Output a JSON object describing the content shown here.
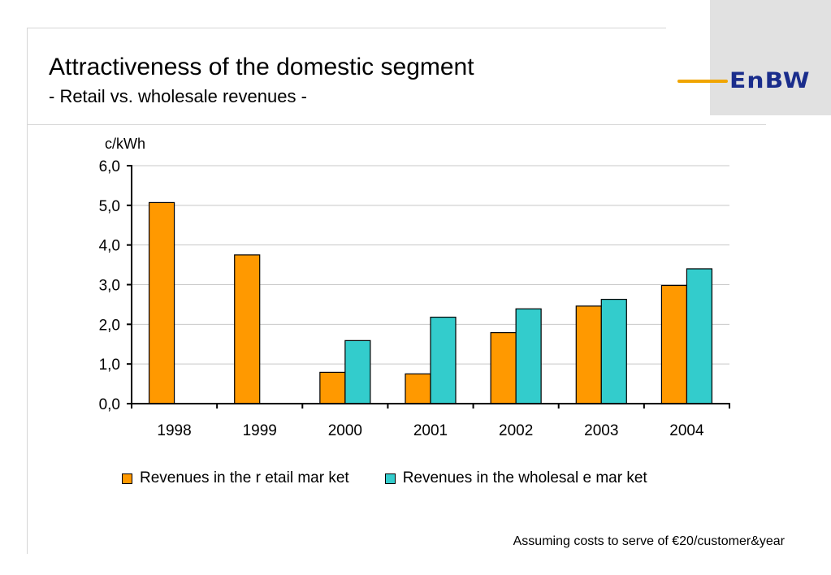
{
  "header": {
    "title": "Attractiveness of the domestic segment",
    "subtitle": "- Retail vs. wholesale revenues -",
    "logo_text": "EnBW"
  },
  "footnote": "Assuming costs to serve of €20/customer&year",
  "colors": {
    "retail": "#ff9900",
    "wholesale": "#33cccc",
    "logo_blue": "#1a2d8c",
    "logo_accent": "#f0a500"
  },
  "chart_data": {
    "type": "bar",
    "ylabel": "c/kWh",
    "ylim": [
      0,
      6
    ],
    "yticks": [
      "0,0",
      "1,0",
      "2,0",
      "3,0",
      "4,0",
      "5,0",
      "6,0"
    ],
    "grid": true,
    "legend_position": "bottom",
    "categories": [
      "1998",
      "1999",
      "2000",
      "2001",
      "2002",
      "2003",
      "2004"
    ],
    "series": [
      {
        "name": "Revenues in the r etail mar ket",
        "color": "#ff9900",
        "values": [
          5.07,
          3.75,
          0.79,
          0.75,
          1.79,
          2.46,
          2.98
        ]
      },
      {
        "name": "Revenues in the wholesal e mar ket",
        "color": "#33cccc",
        "values": [
          null,
          null,
          1.59,
          2.18,
          2.39,
          2.63,
          3.4
        ]
      }
    ]
  }
}
